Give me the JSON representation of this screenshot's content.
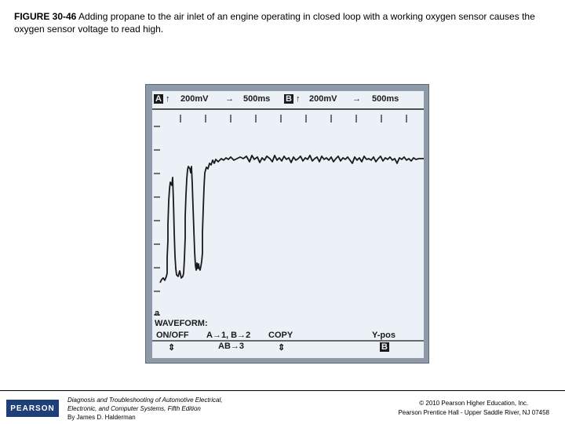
{
  "caption": {
    "figure_label": "FIGURE 30-46",
    "text": " Adding propane to the air inlet of an engine operating in closed loop with a working oxygen sensor causes the oxygen sensor voltage to read high."
  },
  "scope": {
    "channel_a": "A",
    "channel_b": "B",
    "arrow_up": "↑",
    "arrow_right": "→",
    "a_volts": "200mV",
    "a_time": "500ms",
    "b_volts": "200mV",
    "b_time": "500ms",
    "a_marker": "a",
    "waveform_label": "WAVEFORM:",
    "btn1_label": "ON/OFF",
    "btn2_label": "A→1, B→2",
    "btn2_sub": "AB→3",
    "btn3_label": "COPY",
    "btn4_label": "Y-pos",
    "btn4_box": "B",
    "toggle_glyph": "⇕"
  },
  "footer": {
    "logo": "PEARSON",
    "book_line1": "Diagnosis and Troubleshooting of Automotive Electrical,",
    "book_line2": "Electronic, and Computer Systems, Fifth Edition",
    "book_line3": "By James D. Halderman",
    "copyright_line1": "© 2010 Pearson Higher Education, Inc.",
    "copyright_line2": "Pearson Prentice Hall - Upper Saddle River, NJ 07458"
  },
  "colors": {
    "scope_frame": "#8e9aa9",
    "screen": "#ecf1f7",
    "trace": "#1a1a1a",
    "logo_bg": "#1f3f7a"
  }
}
